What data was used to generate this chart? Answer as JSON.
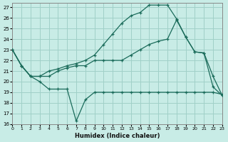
{
  "xlabel": "Humidex (Indice chaleur)",
  "background_color": "#c8ece6",
  "grid_color": "#a0d0c8",
  "line_color": "#1a6b5a",
  "xlim": [
    0,
    23
  ],
  "ylim": [
    16,
    27.4
  ],
  "xticks": [
    0,
    1,
    2,
    3,
    4,
    5,
    6,
    7,
    8,
    9,
    10,
    11,
    12,
    13,
    14,
    15,
    16,
    17,
    18,
    19,
    20,
    21,
    22,
    23
  ],
  "yticks": [
    16,
    17,
    18,
    19,
    20,
    21,
    22,
    23,
    24,
    25,
    26,
    27
  ],
  "line1_x": [
    0,
    1,
    2,
    3,
    4,
    5,
    6,
    7,
    8,
    9,
    10,
    11,
    12,
    13,
    14,
    15,
    16,
    17,
    18,
    19,
    20,
    21,
    22,
    23
  ],
  "line1_y": [
    23,
    21.5,
    20.5,
    20.0,
    19.3,
    19.3,
    19.3,
    16.3,
    18.3,
    19.0,
    19.0,
    19.0,
    19.0,
    19.0,
    19.0,
    19.0,
    19.0,
    19.0,
    19.0,
    19.0,
    19.0,
    19.0,
    19.0,
    18.8
  ],
  "line2_x": [
    0,
    1,
    2,
    3,
    4,
    5,
    6,
    7,
    8,
    9,
    10,
    11,
    12,
    13,
    14,
    15,
    16,
    17,
    18,
    19,
    20,
    21,
    22,
    23
  ],
  "line2_y": [
    23,
    21.5,
    20.5,
    20.5,
    20.5,
    21.0,
    21.3,
    21.5,
    21.5,
    22.0,
    22.0,
    22.0,
    22.0,
    22.5,
    23.0,
    23.5,
    23.8,
    24.0,
    25.8,
    24.2,
    22.8,
    22.7,
    19.5,
    18.7
  ],
  "line3_x": [
    0,
    1,
    2,
    3,
    4,
    5,
    6,
    7,
    8,
    9,
    10,
    11,
    12,
    13,
    14,
    15,
    16,
    17,
    18,
    19,
    20,
    21,
    22,
    23
  ],
  "line3_y": [
    23,
    21.5,
    20.5,
    20.5,
    21.0,
    21.2,
    21.5,
    21.7,
    22.0,
    22.5,
    23.5,
    24.5,
    25.5,
    26.2,
    26.5,
    27.2,
    27.2,
    27.2,
    25.9,
    24.2,
    22.8,
    22.7,
    20.5,
    18.7
  ]
}
